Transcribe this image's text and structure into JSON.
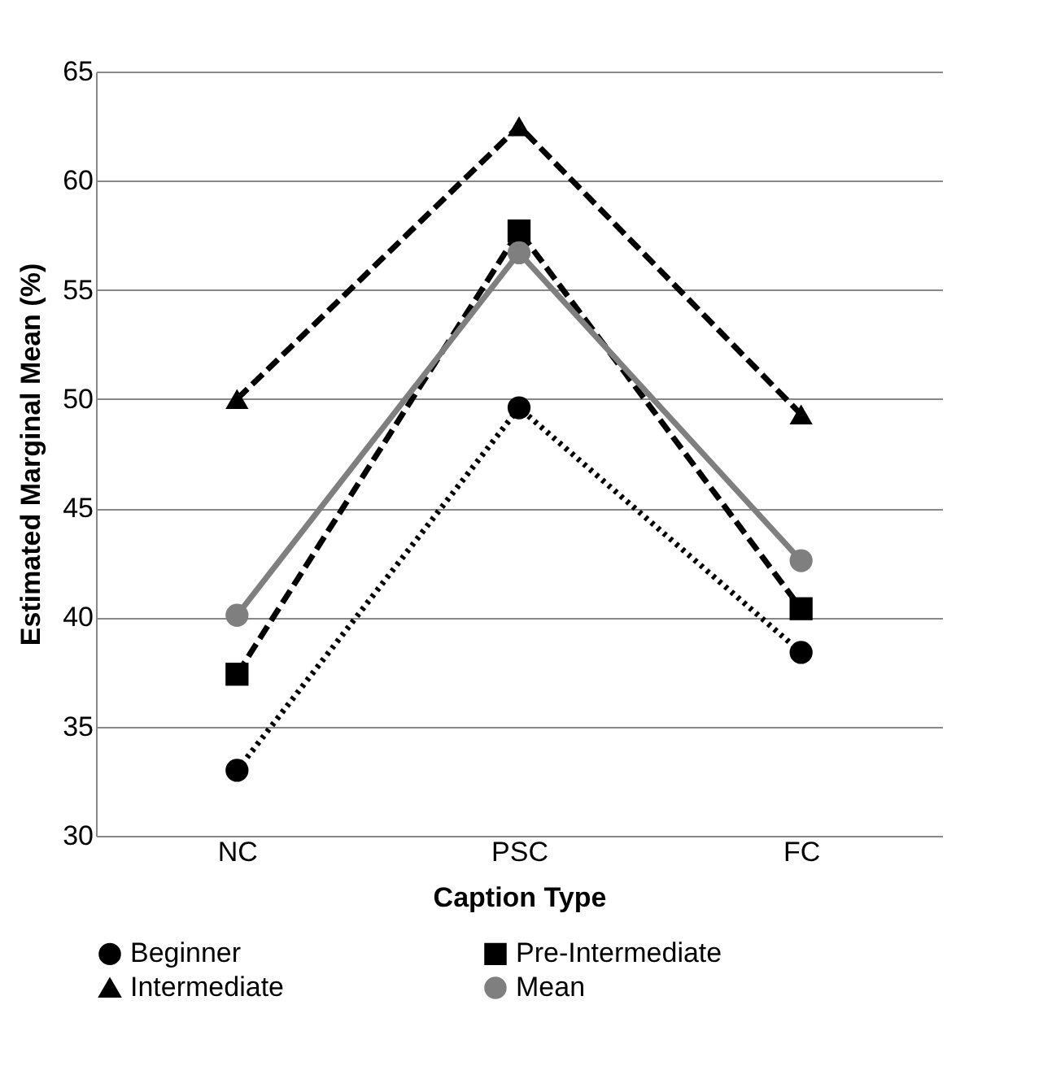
{
  "chart_data": {
    "type": "line",
    "xlabel": "Caption Type",
    "ylabel": "Estimated Marginal Mean (%)",
    "categories": [
      "NC",
      "PSC",
      "FC"
    ],
    "series": [
      {
        "name": "Beginner",
        "color": "#000000",
        "values": [
          33.0,
          49.6,
          38.4
        ],
        "marker": "circle",
        "line_style": "dotted"
      },
      {
        "name": "Pre-Intermediate",
        "color": "#000000",
        "values": [
          37.4,
          57.7,
          40.4
        ],
        "marker": "square",
        "line_style": "dashed"
      },
      {
        "name": "Intermediate",
        "color": "#000000",
        "values": [
          50.0,
          62.5,
          49.3
        ],
        "marker": "triangle",
        "line_style": "dashed"
      },
      {
        "name": "Mean",
        "color": "#7f7f7f",
        "values": [
          40.1,
          56.7,
          42.6
        ],
        "marker": "circle",
        "line_style": "solid"
      }
    ],
    "ylim": [
      30,
      65
    ],
    "yticks": [
      30,
      35,
      40,
      45,
      50,
      55,
      60,
      65
    ],
    "grid": "y",
    "legend": "bottom"
  }
}
